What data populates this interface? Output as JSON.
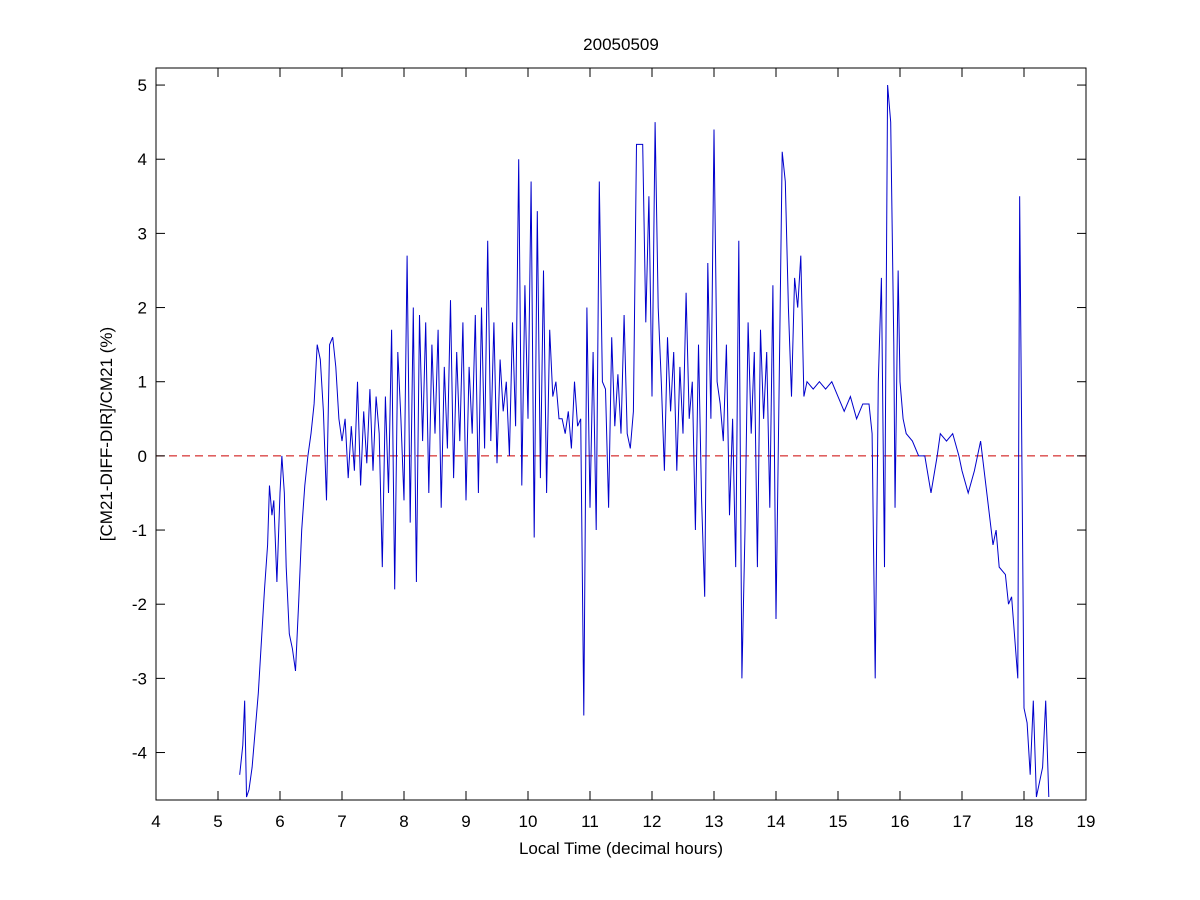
{
  "chart_data": {
    "type": "line",
    "title": "20050509",
    "x_label": "Local Time (decimal hours)",
    "y_label": "[CM21-DIFF-DIR]/CM21 (%)",
    "xlim": [
      4,
      19
    ],
    "ylim": [
      -4.64,
      5.23
    ],
    "xticks": [
      4,
      5,
      6,
      7,
      8,
      9,
      10,
      11,
      12,
      13,
      14,
      15,
      16,
      17,
      18,
      19
    ],
    "yticks": [
      -4,
      -3,
      -2,
      -1,
      0,
      1,
      2,
      3,
      4,
      5
    ],
    "reference_line": {
      "value": 0,
      "color": "#cc0000"
    },
    "x": [
      5.35,
      5.4,
      5.43,
      5.46,
      5.5,
      5.55,
      5.6,
      5.65,
      5.7,
      5.75,
      5.8,
      5.83,
      5.87,
      5.9,
      5.95,
      6.0,
      6.03,
      6.07,
      6.1,
      6.15,
      6.2,
      6.25,
      6.3,
      6.35,
      6.4,
      6.45,
      6.5,
      6.55,
      6.6,
      6.65,
      6.7,
      6.75,
      6.8,
      6.85,
      6.9,
      6.95,
      7.0,
      7.05,
      7.1,
      7.15,
      7.2,
      7.25,
      7.3,
      7.35,
      7.4,
      7.45,
      7.5,
      7.55,
      7.6,
      7.65,
      7.7,
      7.75,
      7.8,
      7.85,
      7.9,
      7.95,
      8.0,
      8.05,
      8.1,
      8.15,
      8.2,
      8.25,
      8.3,
      8.35,
      8.4,
      8.45,
      8.5,
      8.55,
      8.6,
      8.65,
      8.7,
      8.75,
      8.8,
      8.85,
      8.9,
      8.95,
      9.0,
      9.05,
      9.1,
      9.15,
      9.2,
      9.25,
      9.3,
      9.35,
      9.4,
      9.45,
      9.5,
      9.55,
      9.6,
      9.65,
      9.7,
      9.75,
      9.8,
      9.85,
      9.9,
      9.95,
      10.0,
      10.05,
      10.1,
      10.15,
      10.2,
      10.25,
      10.3,
      10.35,
      10.4,
      10.45,
      10.5,
      10.55,
      10.6,
      10.65,
      10.7,
      10.75,
      10.8,
      10.85,
      10.9,
      10.95,
      11.0,
      11.05,
      11.1,
      11.15,
      11.2,
      11.25,
      11.3,
      11.35,
      11.4,
      11.45,
      11.5,
      11.55,
      11.6,
      11.65,
      11.7,
      11.75,
      11.85,
      11.9,
      11.95,
      12.0,
      12.05,
      12.1,
      12.15,
      12.2,
      12.25,
      12.3,
      12.35,
      12.4,
      12.45,
      12.5,
      12.55,
      12.6,
      12.65,
      12.7,
      12.75,
      12.8,
      12.85,
      12.9,
      12.95,
      13.0,
      13.05,
      13.1,
      13.15,
      13.2,
      13.25,
      13.3,
      13.35,
      13.4,
      13.45,
      13.5,
      13.55,
      13.6,
      13.65,
      13.7,
      13.75,
      13.8,
      13.85,
      13.9,
      13.95,
      14.0,
      14.05,
      14.1,
      14.15,
      14.2,
      14.25,
      14.3,
      14.35,
      14.4,
      14.45,
      14.5,
      14.6,
      14.7,
      14.8,
      14.9,
      15.0,
      15.1,
      15.2,
      15.3,
      15.4,
      15.5,
      15.55,
      15.6,
      15.65,
      15.7,
      15.75,
      15.8,
      15.85,
      15.9,
      15.92,
      15.97,
      16.0,
      16.05,
      16.1,
      16.2,
      16.3,
      16.4,
      16.5,
      16.6,
      16.65,
      16.75,
      16.85,
      16.95,
      17.0,
      17.1,
      17.2,
      17.3,
      17.4,
      17.5,
      17.55,
      17.6,
      17.7,
      17.75,
      17.8,
      17.9,
      17.93,
      18.0,
      18.05,
      18.1,
      18.15,
      18.2,
      18.3,
      18.35,
      18.4
    ],
    "series": [
      {
        "color": "#0000cc",
        "values": [
          -4.3,
          -3.9,
          -3.3,
          -4.6,
          -4.5,
          -4.2,
          -3.7,
          -3.2,
          -2.5,
          -1.8,
          -1.2,
          -0.4,
          -0.8,
          -0.6,
          -1.7,
          -0.5,
          0.0,
          -0.5,
          -1.5,
          -2.4,
          -2.6,
          -2.9,
          -2.0,
          -1.0,
          -0.4,
          0.0,
          0.3,
          0.7,
          1.5,
          1.3,
          0.6,
          -0.6,
          1.5,
          1.6,
          1.2,
          0.5,
          0.2,
          0.5,
          -0.3,
          0.4,
          -0.2,
          1.0,
          -0.4,
          0.6,
          -0.1,
          0.9,
          -0.2,
          0.8,
          0.3,
          -1.5,
          0.8,
          -0.5,
          1.7,
          -1.8,
          1.4,
          0.5,
          -0.6,
          2.7,
          -0.9,
          2.0,
          -1.7,
          1.9,
          0.2,
          1.8,
          -0.5,
          1.5,
          0.3,
          1.7,
          -0.7,
          1.2,
          0.1,
          2.1,
          -0.3,
          1.4,
          0.2,
          1.8,
          -0.6,
          1.2,
          0.3,
          1.9,
          -0.5,
          2.0,
          0.1,
          2.9,
          0.2,
          1.8,
          -0.1,
          1.3,
          0.6,
          1.0,
          0.0,
          1.8,
          0.4,
          4.0,
          -0.4,
          2.3,
          0.5,
          3.7,
          -1.1,
          3.3,
          -0.3,
          2.5,
          -0.5,
          1.7,
          0.8,
          1.0,
          0.5,
          0.5,
          0.3,
          0.6,
          0.1,
          1.0,
          0.4,
          0.5,
          -3.5,
          2.0,
          -0.7,
          1.4,
          -1.0,
          3.7,
          1.0,
          0.9,
          -0.7,
          1.6,
          0.4,
          1.1,
          0.3,
          1.9,
          0.3,
          0.1,
          0.6,
          4.2,
          4.2,
          1.8,
          3.5,
          0.8,
          4.5,
          2.0,
          1.0,
          -0.2,
          1.6,
          0.6,
          1.4,
          -0.2,
          1.2,
          0.3,
          2.2,
          0.5,
          1.0,
          -1.0,
          1.5,
          -0.6,
          -1.9,
          2.6,
          0.5,
          4.4,
          1.0,
          0.7,
          0.2,
          1.5,
          -0.8,
          0.5,
          -1.5,
          2.9,
          -3.0,
          -1.0,
          1.8,
          0.3,
          1.4,
          -1.5,
          1.7,
          0.5,
          1.4,
          -0.7,
          2.3,
          -2.2,
          0.9,
          4.1,
          3.7,
          2.0,
          0.8,
          2.4,
          2.0,
          2.7,
          0.8,
          1.0,
          0.9,
          1.0,
          0.9,
          1.0,
          0.8,
          0.6,
          0.8,
          0.5,
          0.7,
          0.7,
          0.3,
          -3.0,
          1.0,
          2.4,
          -1.5,
          5.0,
          4.5,
          1.5,
          -0.7,
          2.5,
          1.0,
          0.5,
          0.3,
          0.2,
          0.0,
          0.0,
          -0.5,
          0.0,
          0.3,
          0.2,
          0.3,
          0.0,
          -0.2,
          -0.5,
          -0.2,
          0.2,
          -0.5,
          -1.2,
          -1.0,
          -1.5,
          -1.6,
          -2.0,
          -1.9,
          -3.0,
          3.5,
          -3.4,
          -3.6,
          -4.3,
          -3.3,
          -4.6,
          -4.2,
          -3.3,
          -4.6
        ]
      }
    ]
  }
}
